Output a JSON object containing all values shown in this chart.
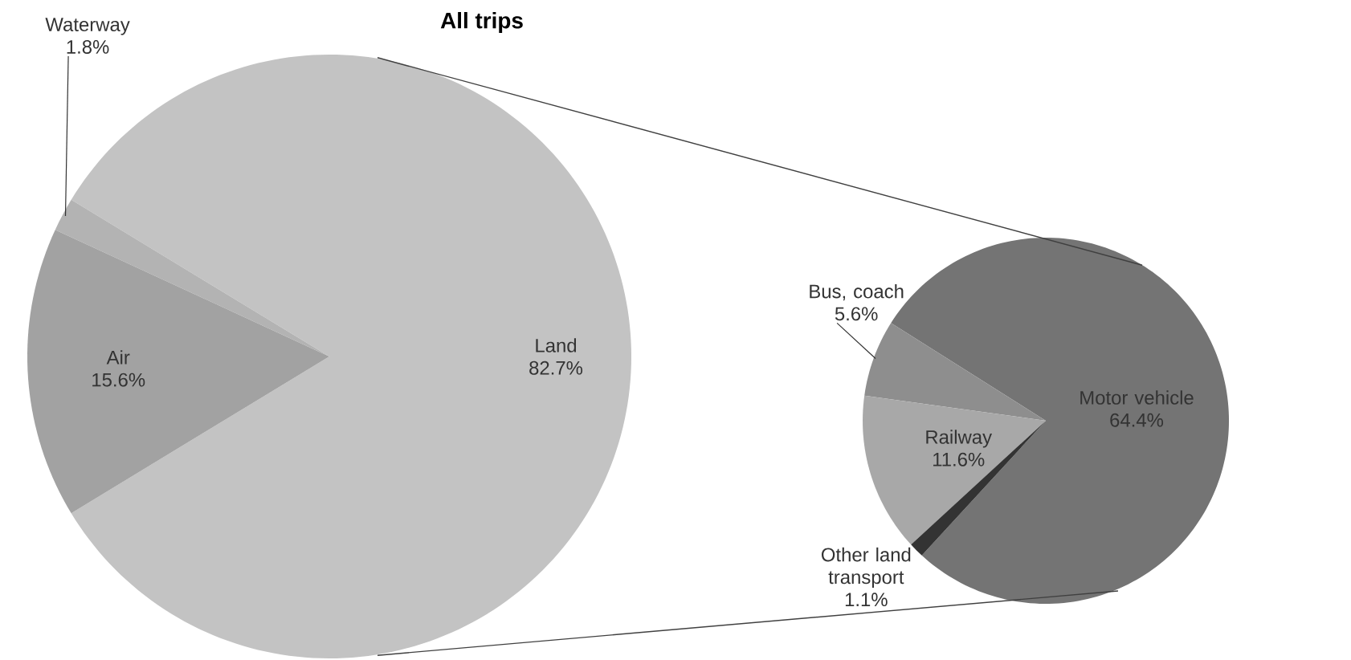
{
  "chart_data": [
    {
      "type": "pie",
      "title": "All trips",
      "categories": [
        "Land",
        "Waterway",
        "Air"
      ],
      "values": [
        82.7,
        1.8,
        15.6
      ],
      "colors": [
        "#c3c3c3",
        "#b3b3b3",
        "#a2a2a2"
      ],
      "value_labels": [
        "82.7%",
        "1.8%",
        "15.6%"
      ]
    },
    {
      "type": "pie",
      "categories": [
        "Motor vehicle",
        "Bus, coach",
        "Railway",
        "Other land transport"
      ],
      "values": [
        64.4,
        5.6,
        11.6,
        1.1
      ],
      "colors": [
        "#747474",
        "#8e8e8e",
        "#a8a8a8",
        "#333333"
      ],
      "value_labels": [
        "64.4%",
        "5.6%",
        "11.6%",
        "1.1%"
      ]
    }
  ]
}
